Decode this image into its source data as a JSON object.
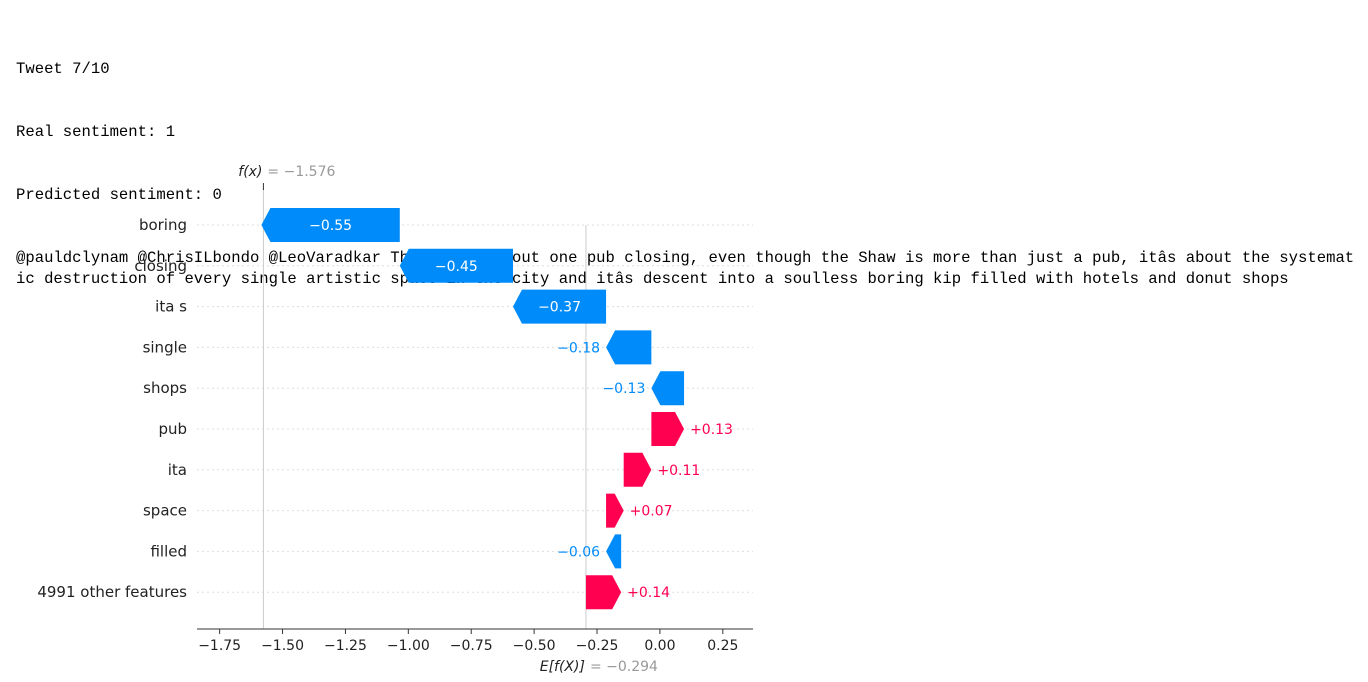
{
  "output": {
    "line1": "Tweet 7/10",
    "line2": "Real sentiment: 1",
    "line3": "Predicted sentiment: 0",
    "tweet": "@pauldclynam @ChrisILbondo @LeoVaradkar This isnât about one pub closing, even though the Shaw is more than just a pub, itâs about the systematic destruction of every single artistic space in the city and itâs descent into a soulless boring kip filled with hotels and donut shops"
  },
  "chart_data": {
    "type": "waterfall",
    "fx_label": "f(x)",
    "fx_value": "= −1.576",
    "fx": -1.576,
    "base_label": "E[f(X)]",
    "base_value_text": "= −0.294",
    "base_value": -0.294,
    "features": [
      {
        "name": "boring",
        "value": -0.55,
        "label": "−0.55"
      },
      {
        "name": "closing",
        "value": -0.45,
        "label": "−0.45"
      },
      {
        "name": "ita s",
        "value": -0.37,
        "label": "−0.37"
      },
      {
        "name": "single",
        "value": -0.18,
        "label": "−0.18"
      },
      {
        "name": "shops",
        "value": -0.13,
        "label": "−0.13"
      },
      {
        "name": "pub",
        "value": 0.13,
        "label": "+0.13"
      },
      {
        "name": "ita",
        "value": 0.11,
        "label": "+0.11"
      },
      {
        "name": "space",
        "value": 0.07,
        "label": "+0.07"
      },
      {
        "name": "filled",
        "value": -0.06,
        "label": "−0.06"
      },
      {
        "name": "4991 other features",
        "value": 0.14,
        "label": "+0.14"
      }
    ],
    "xticks": [
      -1.75,
      -1.5,
      -1.25,
      -1.0,
      -0.75,
      -0.5,
      -0.25,
      0.0,
      0.25
    ],
    "xtick_labels": [
      "−1.75",
      "−1.50",
      "−1.25",
      "−1.00",
      "−0.75",
      "−0.50",
      "−0.25",
      "0.00",
      "0.25"
    ],
    "xlim": [
      -1.84,
      0.37
    ],
    "colors": {
      "negative": "#008bfb",
      "positive": "#ff0051",
      "axis": "#333333",
      "grid": "#cccccc",
      "muted": "#999999"
    }
  }
}
